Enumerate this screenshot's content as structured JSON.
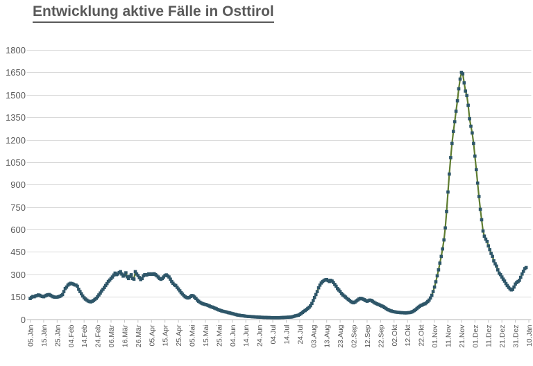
{
  "title": "Entwicklung aktive Fälle in Osttirol",
  "colors": {
    "title_text": "#595959",
    "axis_text": "#595959",
    "grid": "#d9d9d9",
    "axis_line": "#c6c6c6",
    "line": "#5e7c2f",
    "marker": "#2e5669",
    "background": "#ffffff"
  },
  "chart_data": {
    "type": "line",
    "title": "Entwicklung aktive Fälle in Osttirol",
    "xlabel": "",
    "ylabel": "",
    "legend": "none",
    "grid": "horizontal",
    "marker_shape": "square",
    "ylim": [
      0,
      1800
    ],
    "y_ticks": [
      0,
      150,
      300,
      450,
      600,
      750,
      900,
      1050,
      1200,
      1350,
      1500,
      1650,
      1800
    ],
    "x_tick_interval_days": 10,
    "x_tick_labels": [
      "05.Jän",
      "15.Jän",
      "25.Jän",
      "04.Feb",
      "14.Feb",
      "24.Feb",
      "06.Mär",
      "16.Mär",
      "26.Mär",
      "05.Apr",
      "15.Apr",
      "25.Apr",
      "05.Mai",
      "15.Mai",
      "25.Mai",
      "04.Jun",
      "14.Jun",
      "24.Jun",
      "04.Jul",
      "14.Jul",
      "24.Jul",
      "03.Aug",
      "13.Aug",
      "23.Aug",
      "02.Sep",
      "12.Sep",
      "22.Sep",
      "02.Okt",
      "12.Okt",
      "22.Okt",
      "01.Nov",
      "11.Nov",
      "21.Nov",
      "01.Dez",
      "11.Dez",
      "21.Dez",
      "31.Dez",
      "10.Jän"
    ],
    "series": [
      {
        "name": "aktive Fälle",
        "start_label": "05.Jän",
        "sampling": "daily",
        "values_daily": [
          138,
          146,
          152,
          150,
          155,
          158,
          162,
          160,
          155,
          152,
          150,
          155,
          160,
          163,
          165,
          160,
          155,
          150,
          148,
          147,
          148,
          150,
          153,
          158,
          165,
          185,
          205,
          215,
          228,
          235,
          240,
          238,
          234,
          230,
          228,
          220,
          200,
          185,
          170,
          155,
          143,
          135,
          128,
          122,
          118,
          116,
          120,
          125,
          132,
          140,
          150,
          162,
          175,
          188,
          200,
          212,
          225,
          238,
          252,
          262,
          272,
          282,
          295,
          308,
          298,
          302,
          312,
          318,
          302,
          288,
          295,
          310,
          283,
          272,
          287,
          297,
          273,
          268,
          318,
          302,
          292,
          278,
          265,
          272,
          290,
          298,
          295,
          298,
          303,
          300,
          303,
          300,
          304,
          298,
          290,
          282,
          272,
          267,
          272,
          282,
          292,
          296,
          290,
          282,
          268,
          252,
          240,
          230,
          225,
          213,
          202,
          190,
          178,
          168,
          158,
          150,
          145,
          142,
          145,
          152,
          158,
          155,
          148,
          138,
          128,
          120,
          113,
          108,
          104,
          101,
          98,
          96,
          92,
          88,
          84,
          81,
          78,
          74,
          70,
          66,
          62,
          59,
          56,
          53,
          51,
          49,
          47,
          44,
          42,
          40,
          37,
          35,
          33,
          30,
          28,
          27,
          25,
          24,
          23,
          22,
          20,
          19,
          18,
          18,
          17,
          16,
          16,
          15,
          15,
          14,
          14,
          13,
          13,
          12,
          12,
          12,
          11,
          11,
          11,
          10,
          10,
          10,
          10,
          10,
          10,
          10,
          11,
          11,
          12,
          12,
          13,
          13,
          14,
          14,
          15,
          17,
          20,
          23,
          25,
          27,
          32,
          38,
          45,
          52,
          58,
          65,
          72,
          80,
          90,
          105,
          125,
          145,
          165,
          185,
          210,
          228,
          242,
          252,
          258,
          263,
          265,
          258,
          252,
          260,
          255,
          245,
          232,
          220,
          205,
          195,
          185,
          172,
          162,
          155,
          148,
          140,
          132,
          125,
          118,
          112,
          110,
          115,
          122,
          128,
          135,
          140,
          138,
          134,
          130,
          124,
          120,
          124,
          128,
          126,
          120,
          114,
          108,
          104,
          100,
          96,
          92,
          88,
          84,
          78,
          72,
          66,
          62,
          58,
          55,
          52,
          50,
          48,
          47,
          46,
          45,
          44,
          43,
          43,
          42,
          42,
          43,
          44,
          45,
          48,
          52,
          58,
          64,
          72,
          80,
          86,
          92,
          96,
          100,
          104,
          110,
          118,
          128,
          142,
          160,
          185,
          215,
          250,
          290,
          330,
          375,
          420,
          470,
          530,
          610,
          720,
          850,
          970,
          1080,
          1175,
          1255,
          1320,
          1390,
          1460,
          1540,
          1605,
          1650,
          1640,
          1580,
          1525,
          1495,
          1430,
          1340,
          1290,
          1245,
          1175,
          1090,
          1000,
          910,
          820,
          735,
          665,
          590,
          555,
          535,
          520,
          490,
          465,
          440,
          420,
          390,
          370,
          355,
          330,
          308,
          298,
          282,
          268,
          255,
          238,
          225,
          213,
          203,
          196,
          199,
          215,
          235,
          245,
          252,
          260,
          280,
          302,
          320,
          338,
          345
        ]
      }
    ]
  }
}
